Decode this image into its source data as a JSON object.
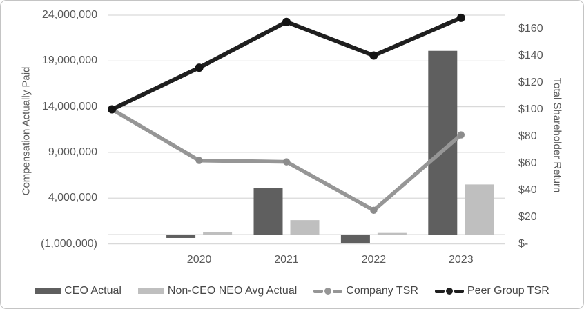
{
  "chart_data": {
    "type": "combo-bar-line",
    "categories": [
      "",
      "2020",
      "2021",
      "2022",
      "2023"
    ],
    "x_axis_labels": [
      "2020",
      "2021",
      "2022",
      "2023"
    ],
    "bar_series": [
      {
        "name": "CEO Actual",
        "color": "#5f5f5f",
        "values": [
          null,
          -350000,
          5100000,
          -950000,
          20100000
        ]
      },
      {
        "name": "Non-CEO NEO Avg Actual",
        "color": "#bfbfbf",
        "values": [
          null,
          300000,
          1600000,
          200000,
          5500000
        ]
      }
    ],
    "line_series": [
      {
        "name": "Company TSR",
        "color": "#969696",
        "marker_color": "#8c8c8c",
        "values": [
          100,
          62,
          61,
          25,
          81
        ]
      },
      {
        "name": "Peer Group TSR",
        "color": "#1f1f1f",
        "marker_color": "#141414",
        "values": [
          100,
          131,
          165,
          140,
          168
        ]
      }
    ],
    "left_axis": {
      "title": "Compensation Actually Paid",
      "tick_labels": [
        "24,000,000",
        "19,000,000",
        "14,000,000",
        "9,000,000",
        "4,000,000",
        "(1,000,000)"
      ],
      "tick_values": [
        24000000,
        19000000,
        14000000,
        9000000,
        4000000,
        -1000000
      ],
      "min": -1000000,
      "max": 24000000
    },
    "right_axis": {
      "title": "Total Shareholder Return",
      "tick_labels": [
        "$160",
        "$140",
        "$120",
        "$100",
        "$80",
        "$60",
        "$40",
        "$20",
        "$-"
      ],
      "tick_values": [
        160,
        140,
        120,
        100,
        80,
        60,
        40,
        20,
        0
      ],
      "min": 0,
      "max": 170
    },
    "gridline_color": "#d9d9d9",
    "zero_line_color": "#c9c9c9",
    "legend_position": "bottom"
  }
}
